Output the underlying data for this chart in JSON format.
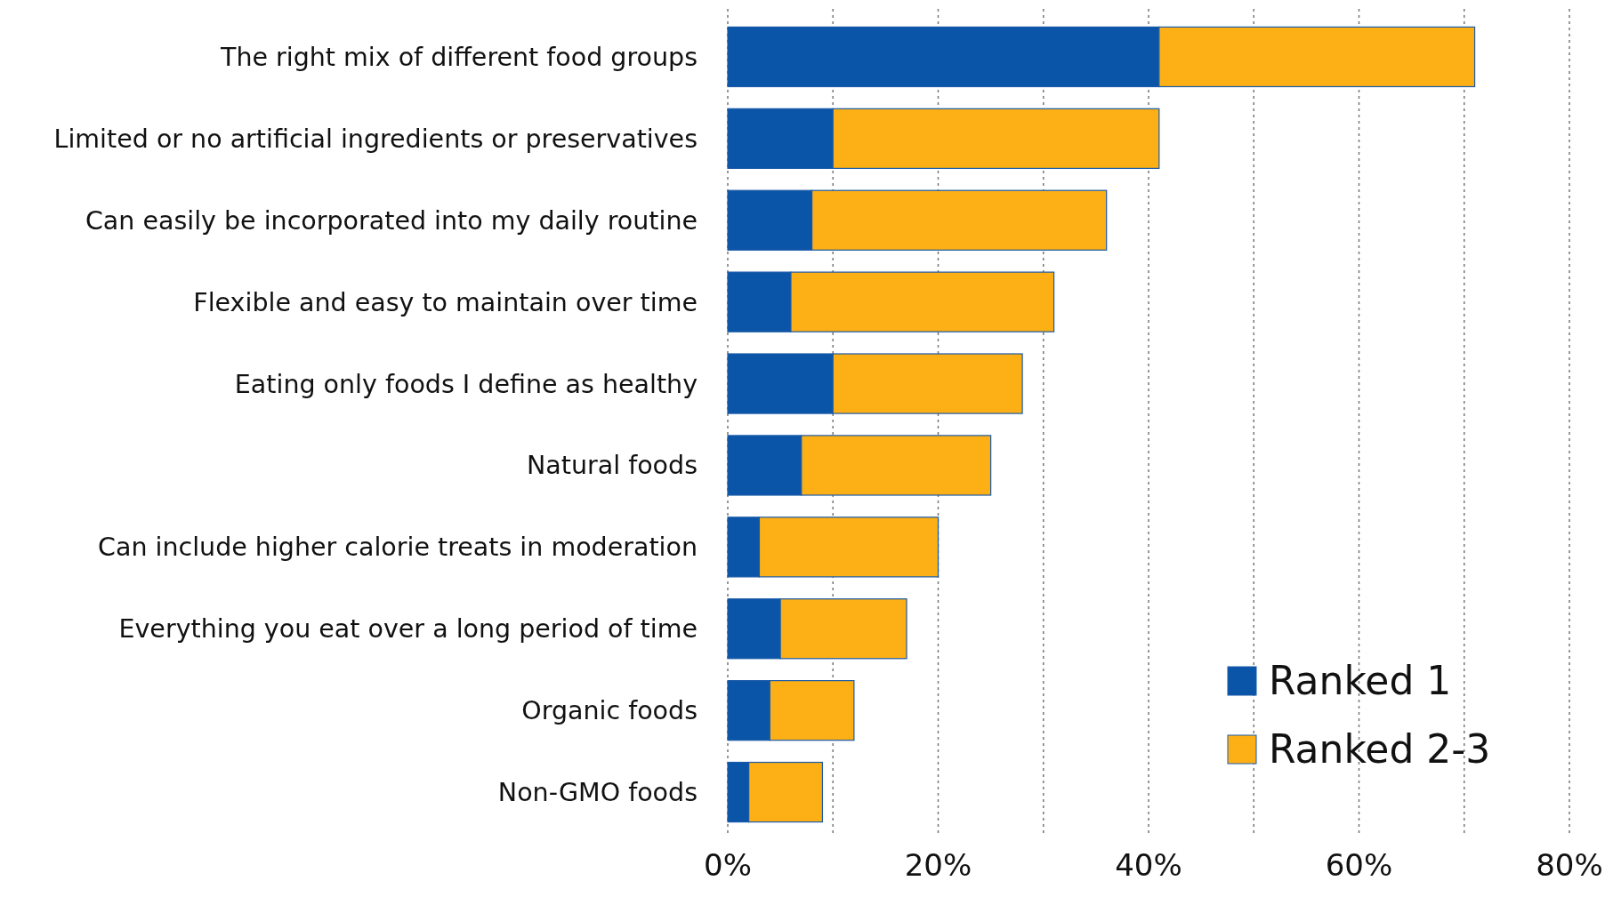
{
  "chart_data": {
    "type": "bar",
    "orientation": "horizontal",
    "stacked": true,
    "categories": [
      "The right mix of different food groups",
      "Limited or no artificial ingredients or preservatives",
      "Can easily be incorporated into my daily routine",
      "Flexible and easy to maintain over time",
      "Eating only foods I define as healthy",
      "Natural foods",
      "Can include higher calorie treats in moderation",
      "Everything you eat over a long period of time",
      "Organic foods",
      "Non-GMO foods"
    ],
    "series": [
      {
        "name": "Ranked 1",
        "color": "#0b55a8",
        "values": [
          41,
          10,
          8,
          6,
          10,
          7,
          3,
          5,
          4,
          2
        ]
      },
      {
        "name": "Ranked 2-3",
        "color": "#fdb016",
        "values": [
          30,
          31,
          28,
          25,
          18,
          18,
          17,
          12,
          8,
          7
        ]
      }
    ],
    "xlim": [
      0,
      80
    ],
    "xticks": [
      {
        "value": 0,
        "label": "0%"
      },
      {
        "value": 10,
        "label": null
      },
      {
        "value": 20,
        "label": "20%"
      },
      {
        "value": 30,
        "label": null
      },
      {
        "value": 40,
        "label": "40%"
      },
      {
        "value": 50,
        "label": null
      },
      {
        "value": 60,
        "label": "60%"
      },
      {
        "value": 70,
        "label": null
      },
      {
        "value": 80,
        "label": "80%"
      }
    ],
    "grid": "x",
    "line_style": "dotted",
    "legend": "bottom right"
  }
}
